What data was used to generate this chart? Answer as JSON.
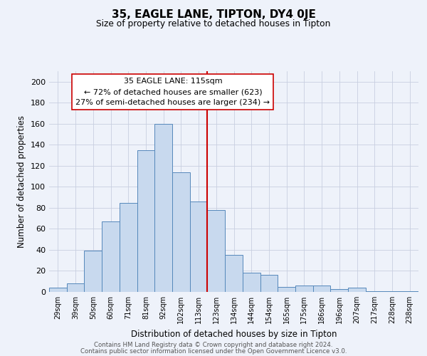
{
  "title": "35, EAGLE LANE, TIPTON, DY4 0JE",
  "subtitle": "Size of property relative to detached houses in Tipton",
  "xlabel": "Distribution of detached houses by size in Tipton",
  "ylabel": "Number of detached properties",
  "bar_labels": [
    "29sqm",
    "39sqm",
    "50sqm",
    "60sqm",
    "71sqm",
    "81sqm",
    "92sqm",
    "102sqm",
    "113sqm",
    "123sqm",
    "134sqm",
    "144sqm",
    "154sqm",
    "165sqm",
    "175sqm",
    "186sqm",
    "196sqm",
    "207sqm",
    "217sqm",
    "228sqm",
    "238sqm"
  ],
  "bar_values": [
    4,
    8,
    39,
    67,
    85,
    135,
    160,
    114,
    86,
    78,
    35,
    18,
    16,
    5,
    6,
    6,
    3,
    4,
    1,
    1,
    1
  ],
  "bar_color": "#c8d9ee",
  "bar_edge_color": "#5588bb",
  "vline_index": 8,
  "vline_color": "#cc0000",
  "ylim": [
    0,
    210
  ],
  "yticks": [
    0,
    20,
    40,
    60,
    80,
    100,
    120,
    140,
    160,
    180,
    200
  ],
  "annotation_title": "35 EAGLE LANE: 115sqm",
  "annotation_line1": "← 72% of detached houses are smaller (623)",
  "annotation_line2": "27% of semi-detached houses are larger (234) →",
  "annotation_box_color": "#ffffff",
  "annotation_box_edge": "#cc0000",
  "footer_line1": "Contains HM Land Registry data © Crown copyright and database right 2024.",
  "footer_line2": "Contains public sector information licensed under the Open Government Licence v3.0.",
  "background_color": "#eef2fa",
  "grid_color": "#c8cfe0"
}
